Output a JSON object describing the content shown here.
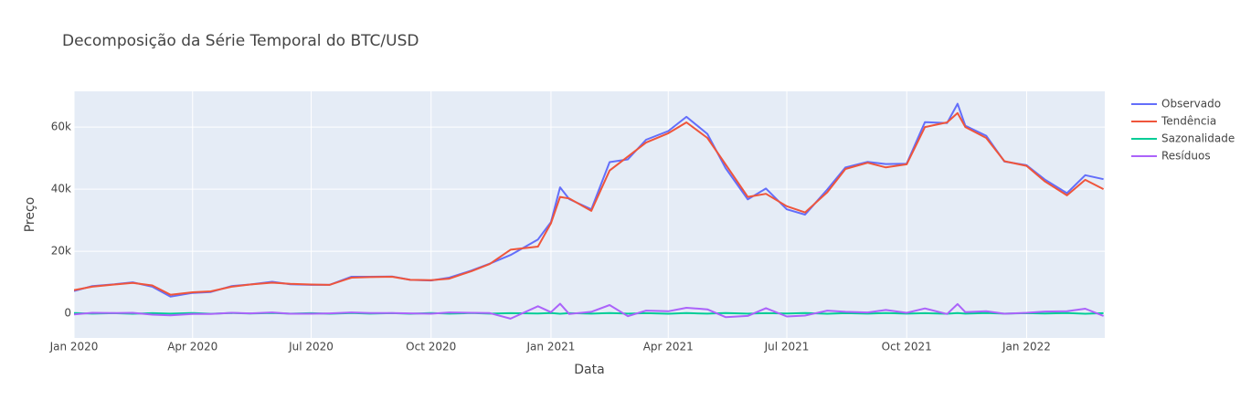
{
  "chart_data": {
    "type": "line",
    "title": "Decomposição da Série Temporal do BTC/USD",
    "x_label": "Data",
    "y_label": "Preço",
    "x": [
      "2020-01-01",
      "2020-01-15",
      "2020-02-01",
      "2020-02-15",
      "2020-03-01",
      "2020-03-15",
      "2020-04-01",
      "2020-04-15",
      "2020-05-01",
      "2020-05-15",
      "2020-06-01",
      "2020-06-15",
      "2020-07-01",
      "2020-07-15",
      "2020-08-01",
      "2020-08-15",
      "2020-09-01",
      "2020-09-15",
      "2020-10-01",
      "2020-10-15",
      "2020-11-01",
      "2020-11-15",
      "2020-12-01",
      "2020-12-22",
      "2021-01-01",
      "2021-01-08",
      "2021-01-15",
      "2021-02-01",
      "2021-02-15",
      "2021-03-01",
      "2021-03-15",
      "2021-04-01",
      "2021-04-15",
      "2021-05-01",
      "2021-05-15",
      "2021-06-01",
      "2021-06-15",
      "2021-07-01",
      "2021-07-15",
      "2021-08-01",
      "2021-08-15",
      "2021-09-01",
      "2021-09-15",
      "2021-10-01",
      "2021-10-15",
      "2021-11-01",
      "2021-11-09",
      "2021-11-15",
      "2021-12-01",
      "2021-12-15",
      "2022-01-01",
      "2022-01-15",
      "2022-02-01",
      "2022-02-15",
      "2022-03-01"
    ],
    "series": [
      {
        "name": "Observado",
        "color": "#636efa",
        "values": [
          7200,
          8800,
          9400,
          10000,
          8600,
          5400,
          6600,
          6900,
          8800,
          9300,
          10200,
          9400,
          9200,
          9200,
          11800,
          11800,
          11900,
          10800,
          10600,
          11500,
          13800,
          16000,
          18800,
          23800,
          29400,
          40600,
          36800,
          33500,
          48700,
          49600,
          55900,
          58700,
          63300,
          57800,
          46800,
          36700,
          40200,
          33500,
          31800,
          39900,
          47000,
          48800,
          48100,
          48200,
          61600,
          61300,
          67500,
          60400,
          57200,
          48900,
          47700,
          43100,
          38700,
          44500,
          43200
        ]
      },
      {
        "name": "Tendência",
        "color": "#ef553b",
        "values": [
          7500,
          8600,
          9300,
          9800,
          9000,
          6000,
          6800,
          7100,
          8600,
          9300,
          9900,
          9500,
          9300,
          9200,
          11500,
          11700,
          11800,
          10800,
          10700,
          11200,
          13600,
          15900,
          20500,
          21500,
          29000,
          37500,
          37000,
          33000,
          46000,
          50500,
          55000,
          58000,
          61500,
          56500,
          48000,
          37500,
          38500,
          34500,
          32500,
          39000,
          46500,
          48500,
          47000,
          48000,
          60000,
          61500,
          64500,
          60000,
          56500,
          49000,
          47500,
          42500,
          38000,
          43000,
          40000
        ]
      },
      {
        "name": "Sazonalidade",
        "color": "#00cc96",
        "values": [
          120,
          -90,
          60,
          -110,
          80,
          -70,
          110,
          -100,
          90,
          -60,
          120,
          -90,
          70,
          -110,
          100,
          -80,
          60,
          -120,
          90,
          -70,
          110,
          -90,
          80,
          -60,
          120,
          -100,
          70,
          -90,
          110,
          -80,
          60,
          -120,
          90,
          -70,
          100,
          -90,
          80,
          -60,
          120,
          -110,
          70,
          -90,
          100,
          -80,
          60,
          -120,
          90,
          -70,
          110,
          -90,
          80,
          -60,
          120,
          -100,
          70
        ]
      },
      {
        "name": "Resíduos",
        "color": "#ab63fa",
        "values": [
          -300,
          200,
          100,
          200,
          -400,
          -600,
          -200,
          -200,
          200,
          0,
          300,
          -100,
          -100,
          0,
          300,
          100,
          100,
          0,
          -100,
          300,
          200,
          100,
          -1700,
          2300,
          400,
          3100,
          -200,
          500,
          2700,
          -900,
          900,
          700,
          1800,
          1300,
          -1200,
          -800,
          1700,
          -1000,
          -700,
          900,
          500,
          300,
          1100,
          200,
          1600,
          -200,
          3000,
          400,
          700,
          -100,
          200,
          600,
          700,
          1500,
          -800
        ]
      }
    ],
    "xlim": [
      "2020-01-01",
      "2022-03-02"
    ],
    "xticks": [
      {
        "value": "2020-01-01",
        "label": "Jan 2020"
      },
      {
        "value": "2020-04-01",
        "label": "Apr 2020"
      },
      {
        "value": "2020-07-01",
        "label": "Jul 2020"
      },
      {
        "value": "2020-10-01",
        "label": "Oct 2020"
      },
      {
        "value": "2021-01-01",
        "label": "Jan 2021"
      },
      {
        "value": "2021-04-01",
        "label": "Apr 2021"
      },
      {
        "value": "2021-07-01",
        "label": "Jul 2021"
      },
      {
        "value": "2021-10-01",
        "label": "Oct 2021"
      },
      {
        "value": "2022-01-01",
        "label": "Jan 2022"
      }
    ],
    "ylim": [
      -7900,
      71500
    ],
    "yticks": [
      0,
      {
        "value": 20000,
        "label": "20k"
      },
      {
        "value": 40000,
        "label": "40k"
      },
      {
        "value": 60000,
        "label": "60k"
      }
    ],
    "grid": true,
    "legend": "right"
  }
}
